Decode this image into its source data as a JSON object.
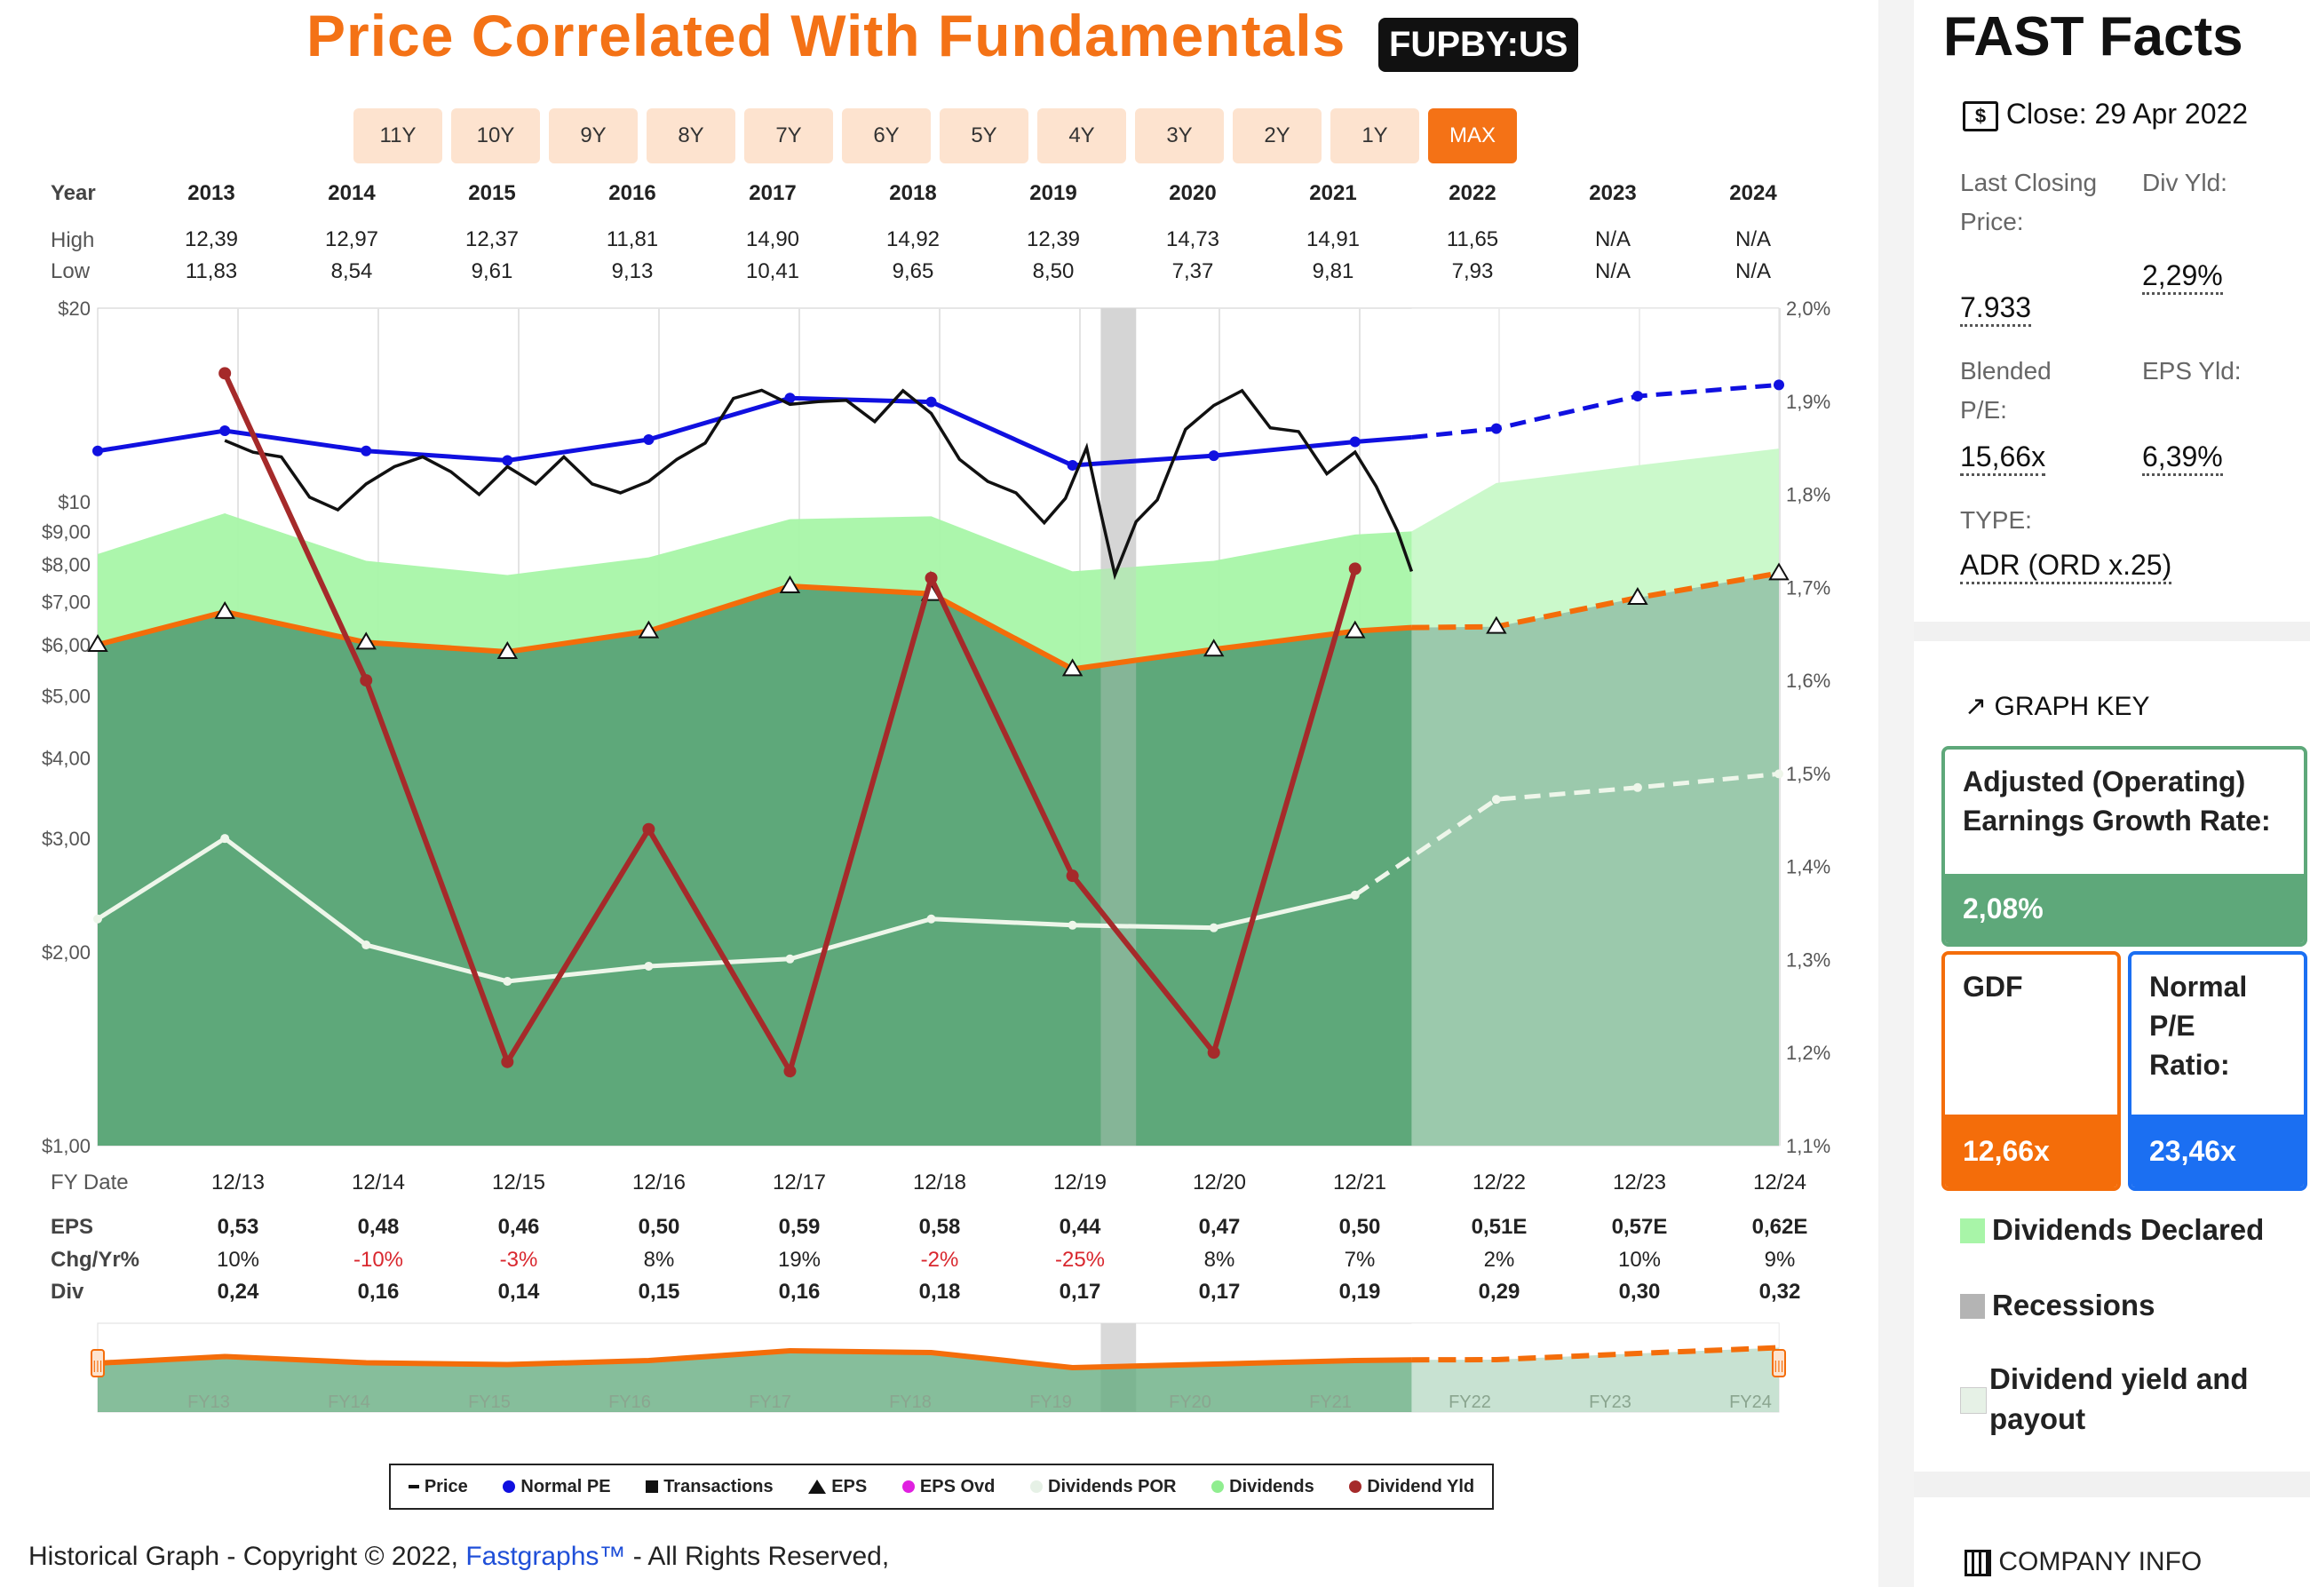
{
  "header": {
    "title": "Price Correlated With Fundamentals",
    "ticker": "FUPBY:US"
  },
  "range_buttons": [
    "11Y",
    "10Y",
    "9Y",
    "8Y",
    "7Y",
    "6Y",
    "5Y",
    "4Y",
    "3Y",
    "2Y",
    "1Y",
    "MAX"
  ],
  "active_range": "MAX",
  "top_table": {
    "labels": {
      "year": "Year",
      "high": "High",
      "low": "Low"
    },
    "years": [
      "2013",
      "2014",
      "2015",
      "2016",
      "2017",
      "2018",
      "2019",
      "2020",
      "2021",
      "2022",
      "2023",
      "2024"
    ],
    "high": [
      "12,39",
      "12,97",
      "12,37",
      "11,81",
      "14,90",
      "14,92",
      "12,39",
      "14,73",
      "14,91",
      "11,65",
      "N/A",
      "N/A"
    ],
    "low": [
      "11,83",
      "8,54",
      "9,61",
      "9,13",
      "10,41",
      "9,65",
      "8,50",
      "7,37",
      "9,81",
      "7,93",
      "N/A",
      "N/A"
    ]
  },
  "bottom_table": {
    "labels": {
      "fy": "FY Date",
      "eps": "EPS",
      "chg": "Chg/Yr%",
      "div": "Div"
    },
    "dates": [
      "12/13",
      "12/14",
      "12/15",
      "12/16",
      "12/17",
      "12/18",
      "12/19",
      "12/20",
      "12/21",
      "12/22",
      "12/23",
      "12/24"
    ],
    "eps": [
      "0,53",
      "0,48",
      "0,46",
      "0,50",
      "0,59",
      "0,58",
      "0,44",
      "0,47",
      "0,50",
      "0,51E",
      "0,57E",
      "0,62E"
    ],
    "chg": [
      "10%",
      "-10%",
      "-3%",
      "8%",
      "19%",
      "-2%",
      "-25%",
      "8%",
      "7%",
      "2%",
      "10%",
      "9%"
    ],
    "div": [
      "0,24",
      "0,16",
      "0,14",
      "0,15",
      "0,16",
      "0,18",
      "0,17",
      "0,17",
      "0,19",
      "0,29",
      "0,30",
      "0,32"
    ]
  },
  "chart_data": {
    "type": "line",
    "y_axis_left": {
      "scale": "log",
      "ticks": [
        "$1,00",
        "$2,00",
        "$3,00",
        "$4,00",
        "$5,00",
        "$6,00",
        "$7,00",
        "$8,00",
        "$9,00",
        "$10",
        "$20"
      ],
      "range": [
        1,
        20
      ]
    },
    "y_axis_right": {
      "ticks": [
        "1,1%",
        "1,2%",
        "1,3%",
        "1,4%",
        "1,5%",
        "1,6%",
        "1,7%",
        "1,8%",
        "1,9%",
        "2,0%"
      ],
      "range": [
        1.1,
        2.0
      ]
    },
    "x": [
      2012.9,
      2013.9,
      2014.9,
      2015.9,
      2016.9,
      2017.9,
      2018.9,
      2019.9,
      2020.9,
      2021.9,
      2022.9,
      2023.9
    ],
    "normal_pe": [
      12.0,
      12.9,
      12.0,
      11.6,
      12.5,
      14.5,
      14.3,
      11.4,
      11.8,
      12.4,
      12.6,
      13.0,
      14.6,
      15.2
    ],
    "normal_pe_x": [
      2012.0,
      2012.9,
      2013.9,
      2014.9,
      2015.9,
      2016.9,
      2017.9,
      2018.9,
      2019.9,
      2020.9,
      2021.3,
      2021.9,
      2022.9,
      2023.9
    ],
    "gdf_eps_line": [
      6.0,
      6.75,
      6.05,
      5.85,
      6.3,
      7.4,
      7.2,
      5.5,
      5.9,
      6.3,
      6.38,
      6.4,
      7.1,
      7.75
    ],
    "dividend_band": [
      8.3,
      9.6,
      8.1,
      7.7,
      8.2,
      9.4,
      9.5,
      7.8,
      8.1,
      8.9,
      9.0,
      10.7,
      11.4,
      12.1
    ],
    "dividend_payout_dollar": [
      2.25,
      3.0,
      2.05,
      1.8,
      1.9,
      1.95,
      2.25,
      2.2,
      2.18,
      2.45,
      3.45,
      3.6,
      3.78
    ],
    "dividend_yield_pct": [
      1.93,
      1.6,
      1.19,
      1.44,
      1.18,
      1.71,
      1.39,
      1.2,
      1.72
    ],
    "dividend_yield_x": [
      2012.9,
      2013.9,
      2014.9,
      2015.9,
      2016.9,
      2017.9,
      2018.9,
      2019.9,
      2020.9
    ],
    "price_points": [
      [
        2012.9,
        12.3
      ],
      [
        2013.1,
        12.1
      ],
      [
        2013.3,
        11.6
      ],
      [
        2013.5,
        10.3
      ],
      [
        2013.7,
        9.6
      ],
      [
        2013.9,
        10.8
      ],
      [
        2014.1,
        11.2
      ],
      [
        2014.3,
        11.9
      ],
      [
        2014.5,
        11.0
      ],
      [
        2014.7,
        10.4
      ],
      [
        2014.9,
        11.2
      ],
      [
        2015.1,
        10.8
      ],
      [
        2015.3,
        11.6
      ],
      [
        2015.5,
        10.8
      ],
      [
        2015.7,
        10.2
      ],
      [
        2015.9,
        10.9
      ],
      [
        2016.1,
        11.5
      ],
      [
        2016.3,
        12.5
      ],
      [
        2016.5,
        14.3
      ],
      [
        2016.7,
        15.1
      ],
      [
        2016.9,
        14.0
      ],
      [
        2017.1,
        14.5
      ],
      [
        2017.3,
        14.2
      ],
      [
        2017.5,
        13.5
      ],
      [
        2017.7,
        14.7
      ],
      [
        2017.9,
        13.9
      ],
      [
        2018.1,
        11.5
      ],
      [
        2018.3,
        10.9
      ],
      [
        2018.5,
        10.2
      ],
      [
        2018.7,
        9.4
      ],
      [
        2018.85,
        10.0
      ],
      [
        2019.0,
        12.3
      ],
      [
        2019.1,
        9.5
      ],
      [
        2019.2,
        7.8
      ],
      [
        2019.35,
        9.2
      ],
      [
        2019.5,
        10.2
      ],
      [
        2019.7,
        12.8
      ],
      [
        2019.9,
        14.3
      ],
      [
        2020.1,
        14.7
      ],
      [
        2020.3,
        13.2
      ],
      [
        2020.5,
        12.7
      ],
      [
        2020.7,
        11.2
      ],
      [
        2020.9,
        11.8
      ],
      [
        2021.05,
        10.7
      ],
      [
        2021.2,
        8.9
      ],
      [
        2021.3,
        7.9
      ]
    ],
    "recession_x": [
      2019.1,
      2019.35
    ],
    "estimate_start_x": 2021.3
  },
  "legend": {
    "items": [
      {
        "label": "Price",
        "color": "#111111",
        "marker": "dash"
      },
      {
        "label": "Normal PE",
        "color": "#1010e0",
        "marker": "dot"
      },
      {
        "label": "Transactions",
        "color": "#111111",
        "marker": "square"
      },
      {
        "label": "EPS",
        "color": "#111111",
        "marker": "triangle"
      },
      {
        "label": "EPS Ovd",
        "color": "#e020e0",
        "marker": "dot"
      },
      {
        "label": "Dividends POR",
        "color": "#e6f1e6",
        "marker": "dot"
      },
      {
        "label": "Dividends",
        "color": "#90ee90",
        "marker": "dot"
      },
      {
        "label": "Dividend Yld",
        "color": "#a52a2a",
        "marker": "dot"
      }
    ]
  },
  "navigator": {
    "labels": [
      "FY13",
      "FY14",
      "FY15",
      "FY16",
      "FY17",
      "FY18",
      "FY19",
      "FY20",
      "FY21",
      "FY22",
      "FY23",
      "FY24"
    ],
    "handle_left": "|||",
    "handle_right": "|||"
  },
  "footer": {
    "prefix": "Historical Graph - Copyright © 2022,",
    "link": "Fastgraphs™",
    "suffix": "- All Rights Reserved,"
  },
  "side": {
    "title": "FAST Facts",
    "close": "Close: 29 Apr 2022",
    "close_icon": "dollar-bill-icon",
    "facts": {
      "last_label": "Last Closing Price:",
      "last_value": "7.933",
      "div_yld_label": "Div Yld:",
      "div_yld_value": "2,29%",
      "blended_label": "Blended P/E:",
      "blended_value": "15,66x",
      "eps_yld_label": "EPS Yld:",
      "eps_yld_value": "6,39%",
      "type_label": "TYPE:",
      "type_value": "ADR (ORD x.25)"
    },
    "graph_key_title": "GRAPH KEY",
    "graph_key_icon": "trend-line-icon",
    "growth_label": "Adjusted (Operating) Earnings Growth Rate:",
    "growth_value": "2,08%",
    "gdf_label": "GDF",
    "gdf_value": "12,66x",
    "npe_label": "Normal P/E Ratio:",
    "npe_value": "23,46x",
    "key_dividends": "Dividends Declared",
    "key_recessions": "Recessions",
    "key_yield": "Dividend yield and payout",
    "company_info": "COMPANY INFO",
    "company_icon": "building-icon",
    "colors": {
      "green": "#5ea87a",
      "orange": "#f46d0a",
      "blue": "#1b6ff2"
    }
  }
}
